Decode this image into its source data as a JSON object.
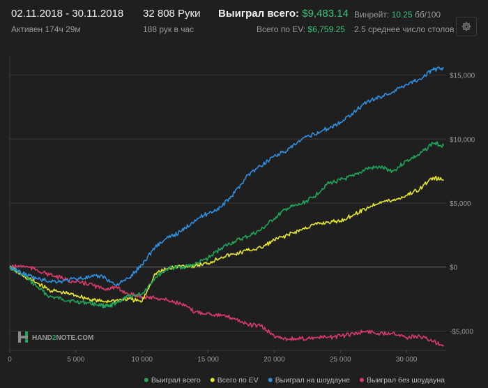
{
  "header": {
    "date_range": "02.11.2018 - 30.11.2018",
    "active_time": "Активен 174ч 29м",
    "hands": "32 808 Руки",
    "hands_per_hour": "188 рук в час",
    "won_label": "Выиграл всего:",
    "won_value": "$9,483.14",
    "ev_label": "Всего по EV:",
    "ev_value": "$6,759.25",
    "winrate_label": "Винрейт:",
    "winrate_value": "10.25",
    "winrate_unit": "бб/100",
    "avg_tables": "2.5 среднее число столов"
  },
  "icons": {
    "settings": "gear-icon",
    "logo": "hand2note-logo-icon"
  },
  "logo_text": {
    "left": "HAND",
    "mid": "2",
    "right": "NOTE.COM"
  },
  "colors": {
    "background": "#1f1f1f",
    "grid": "#3a3a3a",
    "won_total": "#1fa65a",
    "ev_total": "#e6e62e",
    "showdown": "#2f8fe0",
    "non_showdown": "#d83a6a"
  },
  "chart_data": {
    "type": "line",
    "xlim": [
      0,
      33000
    ],
    "ylim": [
      -6500,
      16500
    ],
    "x_ticks": [
      0,
      5000,
      10000,
      15000,
      20000,
      25000,
      30000
    ],
    "x_tick_labels": [
      "0",
      "5 000",
      "10 000",
      "15 000",
      "20 000",
      "25 000",
      "30 000"
    ],
    "y_ticks": [
      15000,
      10000,
      5000,
      0,
      -5000
    ],
    "y_tick_labels": [
      "$15,000",
      "$10,000",
      "$5,000",
      "$0",
      "-$5,000"
    ],
    "grid": "horizontal",
    "legend_position": "bottom-right",
    "series": [
      {
        "name": "Выиграл всего",
        "color": "#1fa65a",
        "x": [
          0,
          1000,
          2000,
          3000,
          4000,
          5000,
          6000,
          7000,
          7500,
          8000,
          9000,
          10000,
          11000,
          12000,
          13000,
          14000,
          15000,
          16000,
          17000,
          18000,
          19000,
          20000,
          21000,
          22000,
          23000,
          24000,
          25000,
          26000,
          27000,
          28000,
          29000,
          30000,
          31000,
          32000,
          32808
        ],
        "y": [
          0,
          -600,
          -1500,
          -2300,
          -2500,
          -2700,
          -2800,
          -3000,
          -3100,
          -2800,
          -2300,
          -2100,
          -800,
          -100,
          0,
          200,
          700,
          1500,
          2000,
          2400,
          2900,
          3800,
          4600,
          4900,
          5500,
          6500,
          6800,
          7100,
          7700,
          7800,
          7500,
          8300,
          8800,
          9700,
          9483
        ]
      },
      {
        "name": "Всего по EV",
        "color": "#e6e62e",
        "x": [
          0,
          1000,
          2000,
          3000,
          4000,
          5000,
          6000,
          7000,
          8000,
          9000,
          10000,
          11000,
          12000,
          13000,
          14000,
          15000,
          16000,
          17000,
          18000,
          19000,
          20000,
          21000,
          22000,
          23000,
          24000,
          25000,
          26000,
          27000,
          28000,
          29000,
          30000,
          31000,
          32000,
          32808
        ],
        "y": [
          0,
          -700,
          -1200,
          -1800,
          -2000,
          -2200,
          -2500,
          -2700,
          -2600,
          -2500,
          -2700,
          -500,
          -100,
          100,
          100,
          300,
          800,
          1000,
          1300,
          1500,
          2100,
          2500,
          2900,
          3300,
          3500,
          3600,
          4100,
          4600,
          5100,
          5200,
          5600,
          6100,
          7000,
          6759
        ]
      },
      {
        "name": "Выиграл на шоудауне",
        "color": "#2f8fe0",
        "x": [
          0,
          1000,
          2000,
          3000,
          4000,
          5000,
          6000,
          7000,
          8000,
          9000,
          10000,
          11000,
          12000,
          13000,
          14000,
          15000,
          16000,
          17000,
          18000,
          19000,
          20000,
          21000,
          22000,
          23000,
          24000,
          25000,
          26000,
          27000,
          28000,
          29000,
          30000,
          31000,
          32000,
          32808
        ],
        "y": [
          0,
          -500,
          -900,
          -1100,
          -1100,
          -900,
          -800,
          -700,
          -1400,
          -900,
          200,
          1600,
          2300,
          2800,
          3700,
          4200,
          4700,
          5800,
          7200,
          7900,
          8700,
          9100,
          9900,
          10400,
          10800,
          11300,
          12100,
          12900,
          13300,
          13700,
          14300,
          14700,
          15400,
          15600
        ]
      },
      {
        "name": "Выиграл без шоудауна",
        "color": "#d83a6a",
        "x": [
          0,
          1000,
          2000,
          3000,
          4000,
          5000,
          6000,
          7000,
          8000,
          9000,
          10000,
          11000,
          12000,
          13000,
          14000,
          15000,
          16000,
          17000,
          18000,
          19000,
          20000,
          21000,
          22000,
          23000,
          24000,
          25000,
          26000,
          27000,
          28000,
          29000,
          30000,
          31000,
          32000,
          32808
        ],
        "y": [
          0,
          100,
          -200,
          -600,
          -900,
          -1200,
          -1300,
          -1700,
          -1600,
          -2100,
          -2300,
          -2400,
          -2600,
          -2900,
          -3500,
          -3600,
          -3800,
          -4000,
          -4500,
          -4600,
          -5400,
          -5600,
          -5600,
          -5500,
          -5500,
          -5400,
          -5200,
          -5000,
          -5200,
          -5100,
          -5500,
          -5400,
          -5800,
          -6100
        ]
      }
    ]
  }
}
